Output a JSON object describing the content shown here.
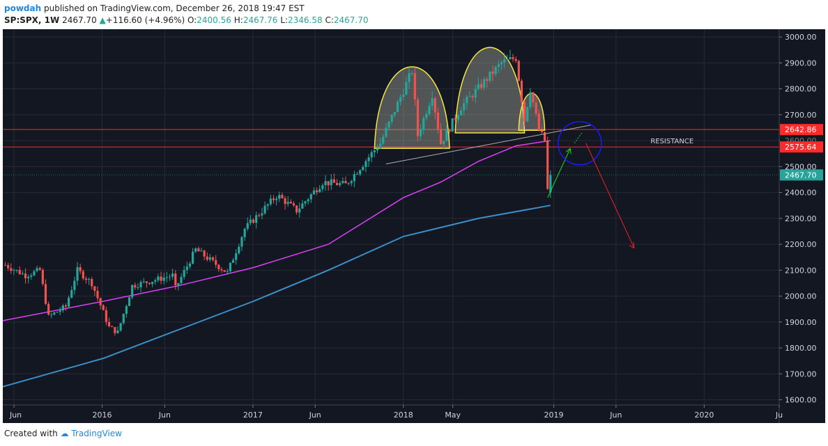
{
  "header": {
    "author": "powdah",
    "published_text": "published on TradingView.com, December 26, 2018 19:47 EST",
    "symbol": "SP:SPX, 1W",
    "last": "2467.70",
    "change": "+116.60 (+4.96%)",
    "o_label": "O:",
    "o_value": "2400.56",
    "h_label": "H:",
    "h_value": "2467.76",
    "l_label": "L:",
    "l_value": "2346.58",
    "c_label": "C:",
    "c_value": "2467.70"
  },
  "footer": {
    "created_with": "Created with",
    "brand": "TradingView"
  },
  "colors": {
    "background": "#131722",
    "grid": "#252a36",
    "up": "#26a69a",
    "down": "#ef5350",
    "ma_magenta": "#e040fb",
    "ma_blue": "#3c90c8",
    "pattern": "#f5e642",
    "resistance": "#ff2a2a"
  },
  "chart_data": {
    "type": "candlestick",
    "symbol": "SP:SPX",
    "interval": "1W",
    "ylim": [
      1580,
      3030
    ],
    "y_ticks": [
      "3000.00",
      "2900.00",
      "2800.00",
      "2700.00",
      "2600.00",
      "2500.00",
      "2400.00",
      "2300.00",
      "2200.00",
      "2100.00",
      "2000.00",
      "1900.00",
      "1800.00",
      "1700.00",
      "1600.00"
    ],
    "x_ticks": [
      "Jun",
      "2016",
      "Jun",
      "2017",
      "Jun",
      "2018",
      "May",
      "2019",
      "Jun",
      "2020",
      "Ju"
    ],
    "x_tick_dates": [
      "2015-06-01",
      "2016-01-01",
      "2016-06-01",
      "2017-01-01",
      "2017-06-01",
      "2018-01-01",
      "2018-05-01",
      "2019-01-01",
      "2019-06-01",
      "2020-01-01",
      "2020-07-01"
    ],
    "x_range": [
      "2015-05-05",
      "2020-07-01"
    ],
    "price_path": [
      [
        "2015-05-11",
        2120
      ],
      [
        "2015-06-29",
        2080
      ],
      [
        "2015-08-03",
        2100
      ],
      [
        "2015-08-24",
        1920
      ],
      [
        "2015-10-05",
        1960
      ],
      [
        "2015-11-02",
        2100
      ],
      [
        "2015-12-07",
        2050
      ],
      [
        "2016-01-18",
        1880
      ],
      [
        "2016-02-08",
        1860
      ],
      [
        "2016-03-14",
        2040
      ],
      [
        "2016-06-20",
        2080
      ],
      [
        "2016-06-27",
        2030
      ],
      [
        "2016-08-15",
        2180
      ],
      [
        "2016-10-31",
        2090
      ],
      [
        "2016-12-12",
        2260
      ],
      [
        "2017-03-01",
        2390
      ],
      [
        "2017-04-17",
        2330
      ],
      [
        "2017-06-19",
        2440
      ],
      [
        "2017-08-14",
        2430
      ],
      [
        "2017-11-06",
        2590
      ],
      [
        "2018-01-22",
        2870
      ],
      [
        "2018-02-05",
        2620
      ],
      [
        "2018-03-12",
        2780
      ],
      [
        "2018-04-02",
        2590
      ],
      [
        "2018-05-21",
        2730
      ],
      [
        "2018-08-27",
        2900
      ],
      [
        "2018-10-01",
        2920
      ],
      [
        "2018-10-22",
        2680
      ],
      [
        "2018-11-05",
        2800
      ],
      [
        "2018-11-26",
        2640
      ],
      [
        "2018-12-10",
        2600
      ],
      [
        "2018-12-17",
        2410
      ],
      [
        "2018-12-24",
        2467.7
      ]
    ],
    "ma_magenta": [
      [
        "2015-05-04",
        1905
      ],
      [
        "2016-01-04",
        1980
      ],
      [
        "2016-07-04",
        2040
      ],
      [
        "2017-01-02",
        2110
      ],
      [
        "2017-07-03",
        2200
      ],
      [
        "2017-10-02",
        2290
      ],
      [
        "2018-01-01",
        2380
      ],
      [
        "2018-04-02",
        2440
      ],
      [
        "2018-07-02",
        2520
      ],
      [
        "2018-10-01",
        2580
      ],
      [
        "2018-12-24",
        2600
      ]
    ],
    "ma_blue": [
      [
        "2015-05-04",
        1650
      ],
      [
        "2016-01-04",
        1760
      ],
      [
        "2016-07-04",
        1870
      ],
      [
        "2017-01-02",
        1980
      ],
      [
        "2017-07-03",
        2100
      ],
      [
        "2018-01-01",
        2230
      ],
      [
        "2018-07-02",
        2300
      ],
      [
        "2018-12-24",
        2350
      ]
    ],
    "horizontal_levels": [
      {
        "price": 2642.86,
        "label": "2642.86"
      },
      {
        "price": 2575.64,
        "label": "2575.64"
      }
    ],
    "last_price_label": "2467.70",
    "annotation": "RESISTANCE",
    "y_axis_hidden_label": "2600.00",
    "overlay_label": "2600.00"
  }
}
